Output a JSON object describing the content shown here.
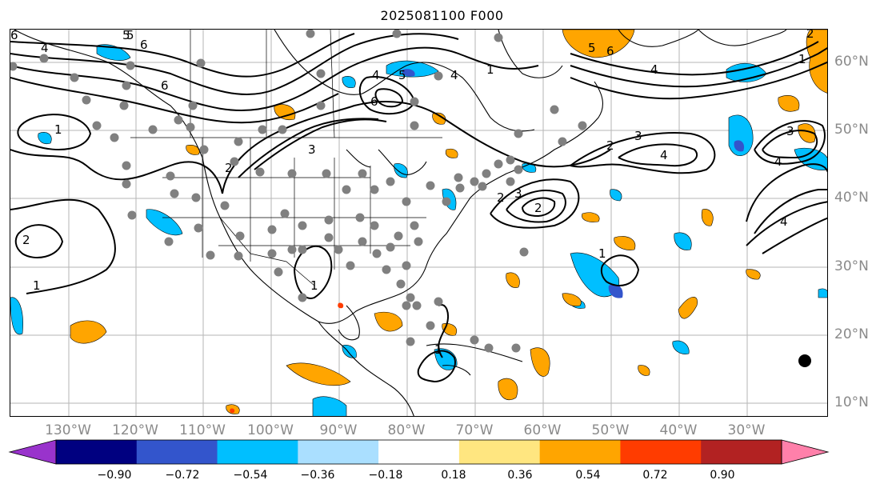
{
  "title": "2025081100 F000",
  "longitude_labels": [
    "130°W",
    "120°W",
    "110°W",
    "100°W",
    "90°W",
    "80°W",
    "70°W",
    "60°W",
    "50°W",
    "40°W",
    "30°W"
  ],
  "latitude_labels": [
    "60°N",
    "50°N",
    "40°N",
    "30°N",
    "20°N",
    "10°N"
  ],
  "colorbar": {
    "tick_labels": [
      "−0.90",
      "−0.72",
      "−0.54",
      "−0.36",
      "−0.18",
      "0.18",
      "0.36",
      "0.54",
      "0.72",
      "0.90"
    ],
    "colors": [
      "#9933cc",
      "#000080",
      "#3355cc",
      "#00bfff",
      "#aadfff",
      "#ffffff",
      "#ffe680",
      "#ffa500",
      "#ff3c00",
      "#b22222",
      "#ff80aa"
    ]
  },
  "contour_labels": [
    "6",
    "5",
    "6",
    "4",
    "6",
    "1",
    "2",
    "3",
    "4",
    "5",
    "6",
    "4",
    "2",
    "3",
    "1",
    "2",
    "3",
    "4",
    "5",
    "6",
    "4",
    "1",
    "2",
    "3",
    "4",
    "2",
    "1",
    "2",
    "1",
    "1",
    "4",
    "1",
    "5"
  ],
  "field_colors": {
    "positive_fill": "#ffa500",
    "negative_fill": "#00bfff",
    "strong_negative_fill": "#3355cc",
    "strong_positive_fill": "#ff3c00",
    "station_dot": "#808080"
  }
}
